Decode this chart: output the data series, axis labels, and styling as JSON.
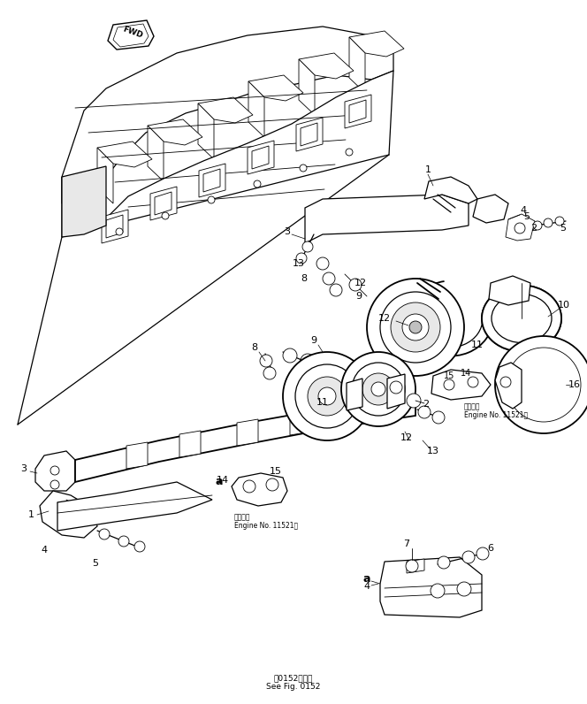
{
  "bg_color": "#ffffff",
  "line_color": "#000000",
  "fig_width": 6.64,
  "fig_height": 7.96,
  "dpi": 100,
  "fwd_label": "FWD",
  "engine_note_jp": "適用号機",
  "engine_note_en": "Engine No. 11521～",
  "bottom_text_jp": "第0152図参照",
  "bottom_text_en": "See Fig. 0152"
}
